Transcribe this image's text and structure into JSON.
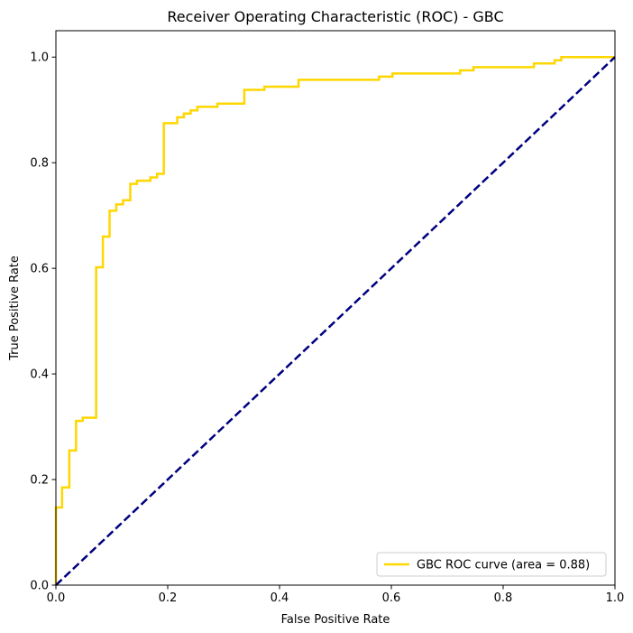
{
  "chart_data": {
    "type": "line",
    "title": "Receiver Operating Characteristic (ROC) - GBC",
    "xlabel": "False Positive Rate",
    "ylabel": "True Positive Rate",
    "xlim": [
      0.0,
      1.0
    ],
    "ylim": [
      0.0,
      1.05
    ],
    "xticks": [
      0.0,
      0.2,
      0.4,
      0.6,
      0.8,
      1.0
    ],
    "yticks": [
      0.0,
      0.2,
      0.4,
      0.6,
      0.8,
      1.0
    ],
    "xtick_labels": [
      "0.0",
      "0.2",
      "0.4",
      "0.6",
      "0.8",
      "1.0"
    ],
    "ytick_labels": [
      "0.0",
      "0.2",
      "0.4",
      "0.6",
      "0.8",
      "1.0"
    ],
    "grid": false,
    "legend": {
      "placement": "lower-right"
    },
    "series": [
      {
        "name": "GBC ROC curve (area = 0.88)",
        "color": "#ffd700",
        "style": "solid",
        "x": [
          0.0,
          0.0,
          0.011,
          0.011,
          0.024,
          0.024,
          0.036,
          0.036,
          0.048,
          0.048,
          0.072,
          0.072,
          0.084,
          0.084,
          0.096,
          0.096,
          0.108,
          0.108,
          0.12,
          0.12,
          0.133,
          0.133,
          0.145,
          0.145,
          0.169,
          0.169,
          0.181,
          0.181,
          0.193,
          0.193,
          0.217,
          0.217,
          0.229,
          0.229,
          0.241,
          0.241,
          0.253,
          0.253,
          0.289,
          0.289,
          0.337,
          0.337,
          0.373,
          0.373,
          0.434,
          0.434,
          0.578,
          0.578,
          0.602,
          0.602,
          0.723,
          0.723,
          0.747,
          0.747,
          0.855,
          0.855,
          0.892,
          0.892,
          0.904,
          0.904,
          1.0
        ],
        "y": [
          0.0,
          0.147,
          0.147,
          0.185,
          0.185,
          0.255,
          0.255,
          0.311,
          0.311,
          0.317,
          0.317,
          0.602,
          0.602,
          0.66,
          0.66,
          0.709,
          0.709,
          0.721,
          0.721,
          0.729,
          0.729,
          0.76,
          0.76,
          0.766,
          0.766,
          0.772,
          0.772,
          0.779,
          0.779,
          0.875,
          0.875,
          0.886,
          0.886,
          0.893,
          0.893,
          0.899,
          0.899,
          0.906,
          0.906,
          0.912,
          0.912,
          0.938,
          0.938,
          0.944,
          0.944,
          0.957,
          0.957,
          0.963,
          0.963,
          0.969,
          0.969,
          0.975,
          0.975,
          0.981,
          0.981,
          0.988,
          0.988,
          0.994,
          0.994,
          1.0,
          1.0
        ]
      },
      {
        "name": "",
        "color": "#000080",
        "style": "dashed",
        "x": [
          0.0,
          1.0
        ],
        "y": [
          0.0,
          1.0
        ]
      }
    ]
  }
}
